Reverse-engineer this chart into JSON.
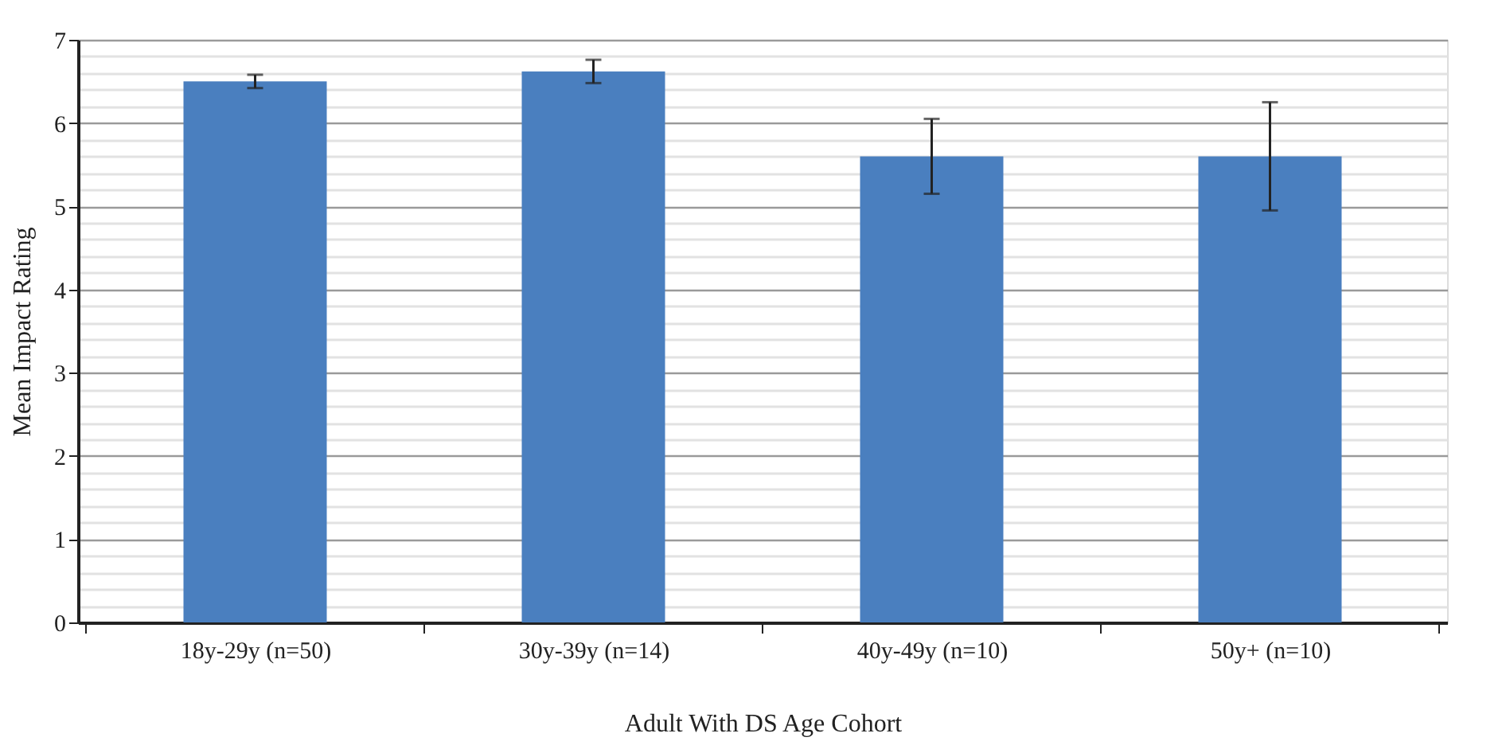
{
  "chart_data": {
    "type": "bar",
    "xlabel": "Adult With DS Age Cohort",
    "ylabel": "Mean Impact Rating",
    "categories": [
      "18y-29y (n=50)",
      "30y-39y (n=14)",
      "40y-49y (n=10)",
      "50y+ (n=10)"
    ],
    "values": [
      6.5,
      6.62,
      5.6,
      5.6
    ],
    "errors": [
      0.08,
      0.14,
      0.45,
      0.65
    ],
    "color": "#4a7fbf",
    "ylim": [
      0,
      7
    ],
    "yticks": [
      0,
      {
        "value": 0.2,
        "label": null
      },
      {
        "value": 0.4,
        "label": null
      },
      {
        "value": 0.6,
        "label": null
      },
      {
        "value": 0.8,
        "label": null
      },
      1,
      {
        "value": 1.2,
        "label": null
      },
      {
        "value": 1.4,
        "label": null
      },
      {
        "value": 1.6,
        "label": null
      },
      {
        "value": 1.8,
        "label": null
      },
      2,
      {
        "value": 2.2,
        "label": null
      },
      {
        "value": 2.4,
        "label": null
      },
      {
        "value": 2.6,
        "label": null
      },
      {
        "value": 2.8,
        "label": null
      },
      3,
      {
        "value": 3.2,
        "label": null
      },
      {
        "value": 3.4,
        "label": null
      },
      {
        "value": 3.6,
        "label": null
      },
      {
        "value": 3.8,
        "label": null
      },
      4,
      {
        "value": 4.2,
        "label": null
      },
      {
        "value": 4.4,
        "label": null
      },
      {
        "value": 4.6,
        "label": null
      },
      {
        "value": 4.8,
        "label": null
      },
      5,
      {
        "value": 5.2,
        "label": null
      },
      {
        "value": 5.4,
        "label": null
      },
      {
        "value": 5.6,
        "label": null
      },
      {
        "value": 5.8,
        "label": null
      },
      6,
      {
        "value": 6.2,
        "label": null
      },
      {
        "value": 6.4,
        "label": null
      },
      {
        "value": 6.6,
        "label": null
      },
      {
        "value": 6.8,
        "label": null
      },
      7
    ],
    "grid": "y"
  }
}
